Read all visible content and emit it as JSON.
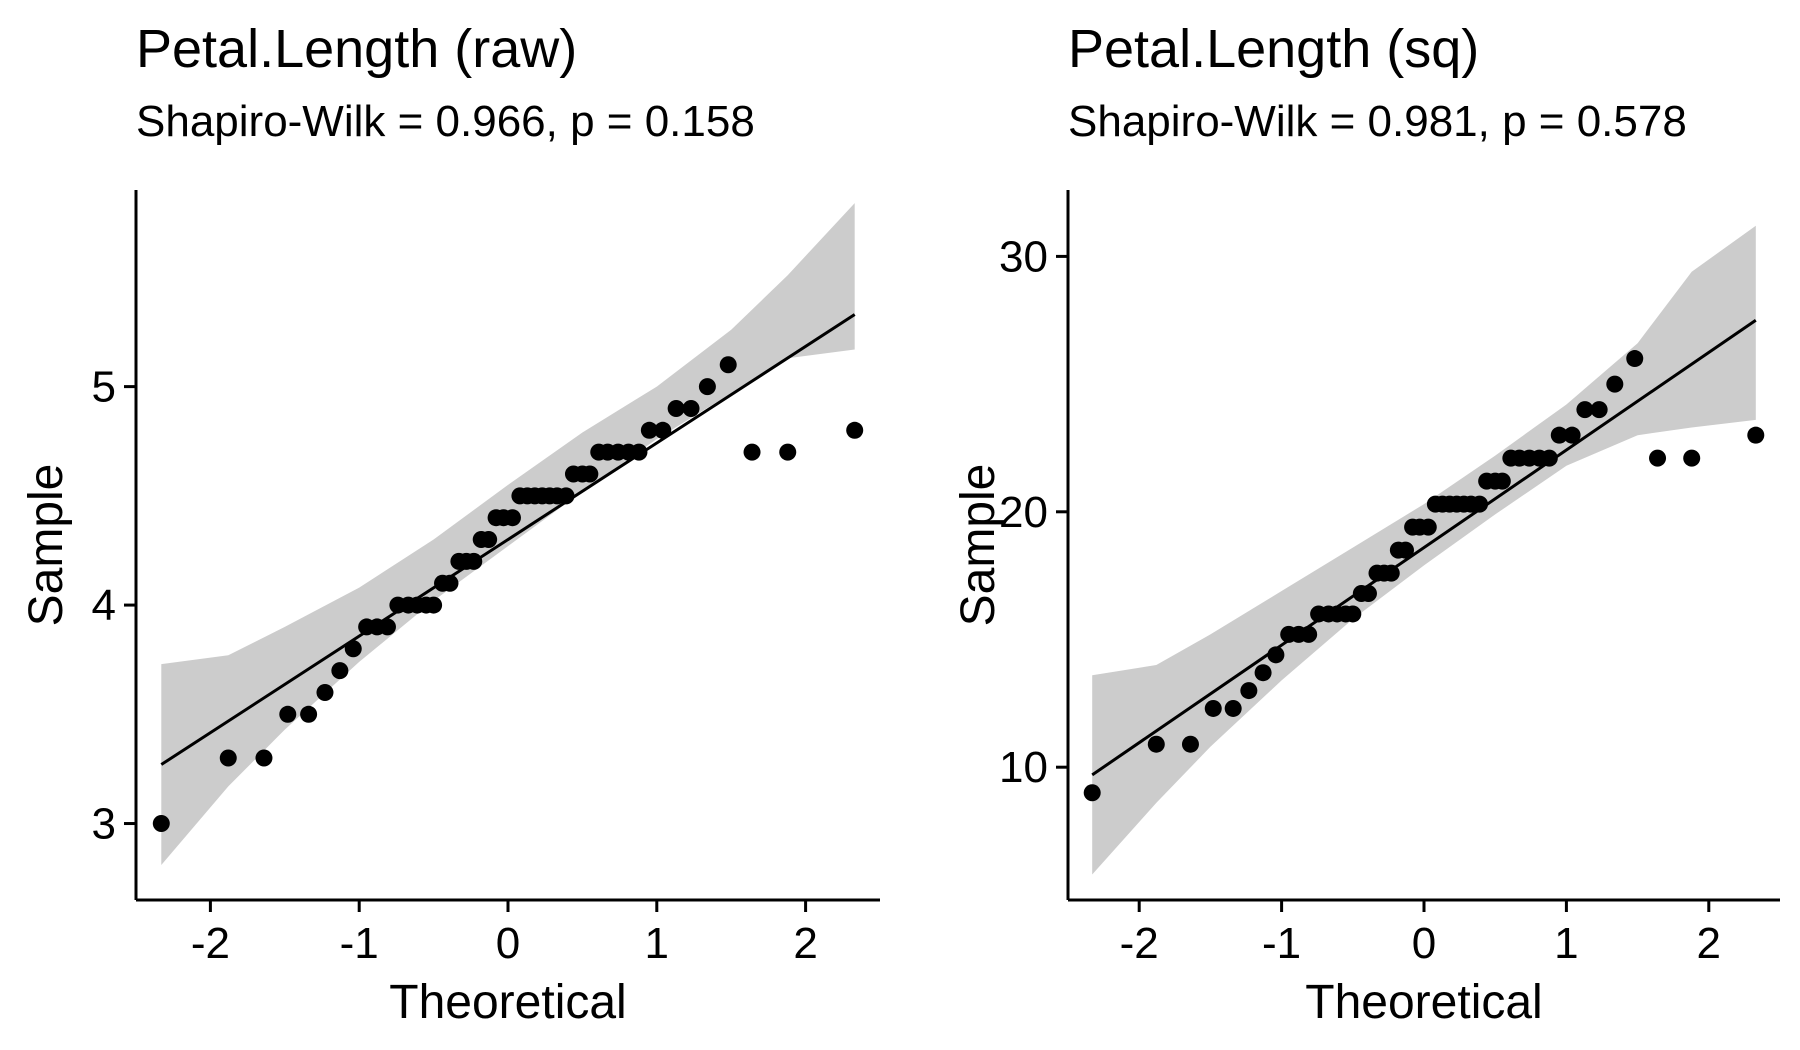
{
  "chart_data": [
    {
      "type": "scatter",
      "subtype": "qq-plot",
      "title": "Petal.Length (raw)",
      "subtitle": "Shapiro-Wilk = 0.966, p = 0.158",
      "xlabel": "Theoretical",
      "ylabel": "Sample",
      "xlim": [
        -2.5,
        2.5
      ],
      "ylim": [
        2.65,
        5.9
      ],
      "xticks": [
        -2,
        -1,
        0,
        1,
        2
      ],
      "xtick_labels": [
        "-2",
        "-1",
        "0",
        "1",
        "2"
      ],
      "yticks": [
        3,
        4,
        5
      ],
      "ytick_labels": [
        "3",
        "4",
        "5"
      ],
      "grid": false,
      "colors": {
        "points": "#000000",
        "line": "#000000",
        "band": "#cccccc"
      },
      "reference_line": {
        "x": [
          -2.33,
          2.33
        ],
        "y": [
          3.27,
          5.33
        ]
      },
      "confidence_band": {
        "x": [
          -2.33,
          -1.88,
          -1.5,
          -1.0,
          -0.5,
          0.0,
          0.5,
          1.0,
          1.5,
          1.88,
          2.33
        ],
        "lower": [
          2.81,
          3.17,
          3.43,
          3.74,
          4.02,
          4.27,
          4.52,
          4.76,
          4.97,
          5.13,
          5.17
        ],
        "upper": [
          3.73,
          3.77,
          3.9,
          4.08,
          4.3,
          4.55,
          4.79,
          5.0,
          5.26,
          5.51,
          5.84
        ]
      },
      "points": {
        "x": [
          -2.33,
          -1.88,
          -1.64,
          -1.48,
          -1.34,
          -1.23,
          -1.13,
          -1.04,
          -0.95,
          -0.88,
          -0.81,
          -0.74,
          -0.67,
          -0.61,
          -0.55,
          -0.5,
          -0.44,
          -0.39,
          -0.33,
          -0.28,
          -0.23,
          -0.18,
          -0.13,
          -0.08,
          -0.03,
          0.03,
          0.08,
          0.13,
          0.18,
          0.23,
          0.28,
          0.33,
          0.39,
          0.44,
          0.5,
          0.55,
          0.61,
          0.67,
          0.74,
          0.81,
          0.88,
          0.95,
          1.04,
          1.13,
          1.23,
          1.34,
          1.48,
          1.64,
          1.88,
          2.33
        ],
        "y": [
          3.0,
          3.3,
          3.3,
          3.5,
          3.5,
          3.6,
          3.7,
          3.8,
          3.9,
          3.9,
          3.9,
          4.0,
          4.0,
          4.0,
          4.0,
          4.0,
          4.1,
          4.1,
          4.2,
          4.2,
          4.2,
          4.3,
          4.3,
          4.4,
          4.4,
          4.4,
          4.5,
          4.5,
          4.5,
          4.5,
          4.5,
          4.5,
          4.5,
          4.6,
          4.6,
          4.6,
          4.7,
          4.7,
          4.7,
          4.7,
          4.7,
          4.8,
          4.8,
          4.9,
          4.9,
          5.0,
          5.1,
          4.7,
          4.7,
          4.8
        ]
      }
    },
    {
      "type": "scatter",
      "subtype": "qq-plot",
      "title": "Petal.Length (sq)",
      "subtitle": "Shapiro-Wilk = 0.981, p = 0.578",
      "xlabel": "Theoretical",
      "ylabel": "Sample",
      "xlim": [
        -2.5,
        2.5
      ],
      "ylim": [
        4.8,
        32.6
      ],
      "xticks": [
        -2,
        -1,
        0,
        1,
        2
      ],
      "xtick_labels": [
        "-2",
        "-1",
        "0",
        "1",
        "2"
      ],
      "yticks": [
        10,
        20,
        30
      ],
      "ytick_labels": [
        "10",
        "20",
        "30"
      ],
      "grid": false,
      "colors": {
        "points": "#000000",
        "line": "#000000",
        "band": "#cccccc"
      },
      "reference_line": {
        "x": [
          -2.33,
          2.33
        ],
        "y": [
          9.7,
          27.5
        ]
      },
      "confidence_band": {
        "x": [
          -2.33,
          -1.88,
          -1.5,
          -1.0,
          -0.5,
          0.0,
          0.5,
          1.0,
          1.5,
          1.88,
          2.33
        ],
        "lower": [
          5.8,
          8.6,
          10.8,
          13.4,
          15.8,
          17.9,
          19.9,
          21.8,
          23.0,
          23.3,
          23.6
        ],
        "upper": [
          13.6,
          14.0,
          15.2,
          16.9,
          18.6,
          20.3,
          22.2,
          24.2,
          26.6,
          29.4,
          31.2
        ]
      },
      "points": {
        "x": [
          -2.33,
          -1.88,
          -1.64,
          -1.48,
          -1.34,
          -1.23,
          -1.13,
          -1.04,
          -0.95,
          -0.88,
          -0.81,
          -0.74,
          -0.67,
          -0.61,
          -0.55,
          -0.5,
          -0.44,
          -0.39,
          -0.33,
          -0.28,
          -0.23,
          -0.18,
          -0.13,
          -0.08,
          -0.03,
          0.03,
          0.08,
          0.13,
          0.18,
          0.23,
          0.28,
          0.33,
          0.39,
          0.44,
          0.5,
          0.55,
          0.61,
          0.67,
          0.74,
          0.81,
          0.88,
          0.95,
          1.04,
          1.13,
          1.23,
          1.34,
          1.48,
          1.64,
          1.88,
          2.33
        ],
        "y": [
          9.0,
          10.9,
          10.9,
          12.3,
          12.3,
          13.0,
          13.7,
          14.4,
          15.2,
          15.2,
          15.2,
          16.0,
          16.0,
          16.0,
          16.0,
          16.0,
          16.8,
          16.8,
          17.6,
          17.6,
          17.6,
          18.5,
          18.5,
          19.4,
          19.4,
          19.4,
          20.3,
          20.3,
          20.3,
          20.3,
          20.3,
          20.3,
          20.3,
          21.2,
          21.2,
          21.2,
          22.1,
          22.1,
          22.1,
          22.1,
          22.1,
          23.0,
          23.0,
          24.0,
          24.0,
          25.0,
          26.0,
          22.1,
          22.1,
          23.0
        ]
      }
    }
  ]
}
